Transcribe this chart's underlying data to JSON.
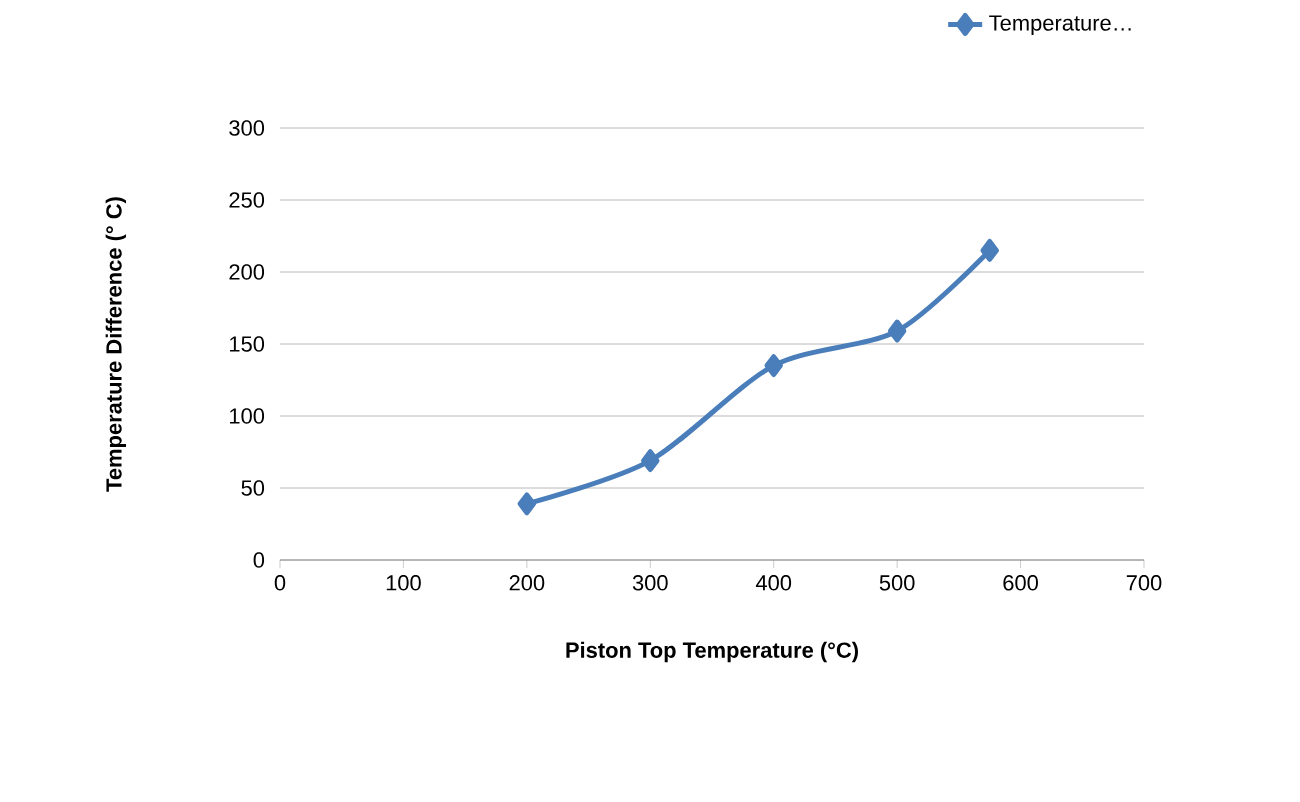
{
  "chart_data": {
    "type": "line",
    "xlabel": "Piston Top Temperature (°C)",
    "ylabel": "Temperature Difference (° C)",
    "x": [
      200,
      300,
      400,
      500,
      575
    ],
    "series": [
      {
        "name": "Temperature…",
        "color": "#4a7ebb",
        "values": [
          39,
          69,
          135,
          159,
          215
        ]
      }
    ],
    "xlim": [
      0,
      700
    ],
    "xticks": [
      0,
      100,
      200,
      300,
      400,
      500,
      600,
      700
    ],
    "ylim": [
      0,
      300
    ],
    "yticks": [
      0,
      50,
      100,
      150,
      200,
      250,
      300
    ],
    "grid": "y",
    "legend": "top right",
    "marker": "diamond",
    "line_style": "solid"
  }
}
